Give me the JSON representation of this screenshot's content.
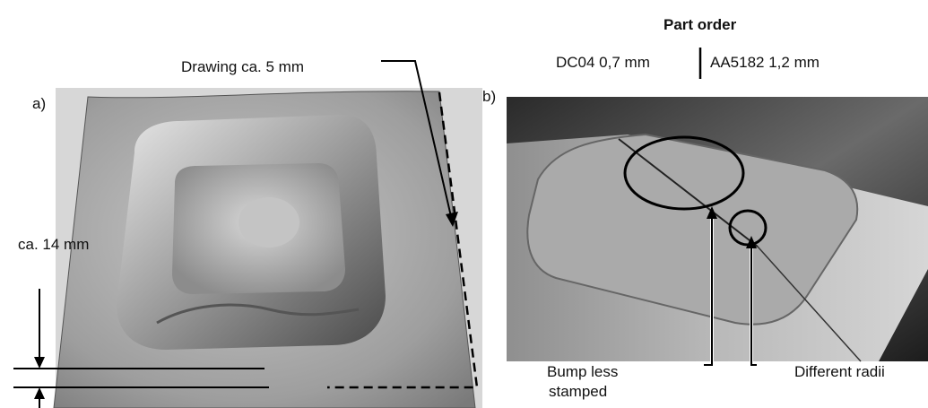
{
  "header": {
    "title": "Part order",
    "left_material": "DC04 0,7 mm",
    "right_material": "AA5182 1,2 mm"
  },
  "panel_a": {
    "tag": "a)",
    "drawing_label": "Drawing ca. 5 mm",
    "height_label": "ca. 14 mm"
  },
  "panel_b": {
    "tag": "b)",
    "bump_label_line1": "Bump less",
    "bump_label_line2": "stamped",
    "radii_label": "Different radii"
  }
}
